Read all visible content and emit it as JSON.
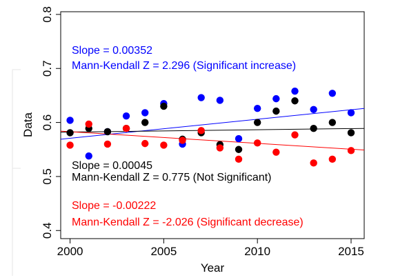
{
  "chart_data": {
    "type": "scatter",
    "xlabel": "Year",
    "ylabel": "Data",
    "xlim": [
      1999.5,
      2015.7
    ],
    "ylim": [
      0.385,
      0.805
    ],
    "x_ticks": [
      2000,
      2005,
      2010,
      2015
    ],
    "y_ticks": [
      0.4,
      0.5,
      0.6,
      0.7,
      0.8
    ],
    "grid": false,
    "series": [
      {
        "color": "#0000ff",
        "x": [
          2000,
          2001,
          2002,
          2003,
          2004,
          2005,
          2006,
          2007,
          2008,
          2009,
          2010,
          2011,
          2012,
          2013,
          2014,
          2015
        ],
        "y": [
          0.604,
          0.538,
          0.583,
          0.612,
          0.618,
          0.635,
          0.56,
          0.646,
          0.641,
          0.57,
          0.626,
          0.644,
          0.658,
          0.624,
          0.654,
          0.618
        ],
        "trend": [
          [
            1999.5,
            0.569
          ],
          [
            2015.7,
            0.626
          ]
        ],
        "annotation": [
          "Slope =  0.00352",
          "Mann-Kendall Z =  2.296 (Significant increase)"
        ]
      },
      {
        "color": "#000000",
        "x": [
          2000,
          2001,
          2002,
          2003,
          2004,
          2005,
          2006,
          2007,
          2008,
          2009,
          2010,
          2011,
          2012,
          2013,
          2014,
          2015
        ],
        "y": [
          0.581,
          0.589,
          0.583,
          0.589,
          0.6,
          0.63,
          0.569,
          0.581,
          0.559,
          0.55,
          0.6,
          0.621,
          0.64,
          0.589,
          0.6,
          0.581
        ],
        "trend": [
          [
            1999.5,
            0.582
          ],
          [
            2015.7,
            0.589
          ]
        ],
        "annotation": [
          "Slope =  0.00045",
          "Mann-Kendall Z =  0.775 (Not Significant)"
        ]
      },
      {
        "color": "#ff0000",
        "x": [
          2000,
          2001,
          2002,
          2003,
          2004,
          2005,
          2006,
          2007,
          2008,
          2009,
          2010,
          2011,
          2012,
          2013,
          2014,
          2015
        ],
        "y": [
          0.558,
          0.597,
          0.56,
          0.589,
          0.561,
          0.558,
          0.567,
          0.585,
          0.553,
          0.532,
          0.562,
          0.545,
          0.577,
          0.525,
          0.532,
          0.548
        ],
        "trend": [
          [
            1999.5,
            0.584
          ],
          [
            2015.7,
            0.549
          ]
        ],
        "annotation": [
          "Slope =  -0.00222",
          "Mann-Kendall Z =  -2.026 (Significant decrease)"
        ]
      }
    ]
  }
}
